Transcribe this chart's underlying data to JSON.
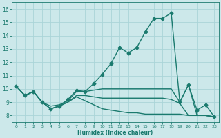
{
  "title": "",
  "xlabel": "Humidex (Indice chaleur)",
  "ylabel": "",
  "background_color": "#cce8ea",
  "grid_color": "#aad4d8",
  "line_color": "#1a7a6e",
  "xlim": [
    -0.5,
    23.5
  ],
  "ylim": [
    7.5,
    16.5
  ],
  "xticks": [
    0,
    1,
    2,
    3,
    4,
    5,
    6,
    7,
    8,
    9,
    10,
    11,
    12,
    13,
    14,
    15,
    16,
    17,
    18,
    19,
    20,
    21,
    22,
    23
  ],
  "yticks": [
    8,
    9,
    10,
    11,
    12,
    13,
    14,
    15,
    16
  ],
  "series": [
    {
      "x": [
        0,
        1,
        2,
        3,
        4,
        5,
        6,
        7,
        8,
        9,
        10,
        11,
        12,
        13,
        14,
        15,
        16,
        17,
        18,
        19,
        20,
        21,
        22,
        23
      ],
      "y": [
        10.2,
        9.5,
        9.8,
        9.0,
        8.5,
        8.7,
        9.2,
        9.9,
        9.8,
        10.4,
        11.1,
        11.9,
        13.1,
        12.7,
        13.1,
        14.3,
        15.3,
        15.3,
        15.7,
        9.0,
        10.3,
        8.4,
        8.8,
        7.9
      ],
      "marker": "D",
      "markersize": 2.5,
      "linewidth": 1.0
    },
    {
      "x": [
        0,
        1,
        2,
        3,
        4,
        5,
        6,
        7,
        8,
        9,
        10,
        11,
        12,
        13,
        14,
        15,
        16,
        17,
        18,
        19,
        20,
        21,
        22,
        23
      ],
      "y": [
        10.2,
        9.5,
        9.8,
        9.0,
        8.7,
        8.8,
        9.1,
        9.8,
        9.8,
        9.9,
        10.0,
        10.0,
        10.0,
        10.0,
        10.0,
        10.0,
        10.0,
        10.0,
        10.0,
        9.0,
        10.3,
        8.0,
        8.0,
        7.9
      ],
      "marker": null,
      "markersize": 0,
      "linewidth": 1.0
    },
    {
      "x": [
        0,
        1,
        2,
        3,
        4,
        5,
        6,
        7,
        8,
        9,
        10,
        11,
        12,
        13,
        14,
        15,
        16,
        17,
        18,
        19,
        20,
        21,
        22,
        23
      ],
      "y": [
        10.2,
        9.5,
        9.8,
        9.0,
        8.5,
        8.7,
        9.0,
        9.5,
        9.5,
        9.4,
        9.3,
        9.3,
        9.3,
        9.3,
        9.3,
        9.3,
        9.3,
        9.3,
        9.2,
        8.9,
        8.0,
        8.0,
        8.0,
        7.9
      ],
      "marker": null,
      "markersize": 0,
      "linewidth": 1.0
    },
    {
      "x": [
        0,
        1,
        2,
        3,
        4,
        5,
        6,
        7,
        8,
        9,
        10,
        11,
        12,
        13,
        14,
        15,
        16,
        17,
        18,
        19,
        20,
        21,
        22,
        23
      ],
      "y": [
        10.2,
        9.5,
        9.8,
        9.0,
        8.5,
        8.7,
        9.0,
        9.4,
        9.1,
        8.8,
        8.5,
        8.4,
        8.3,
        8.2,
        8.2,
        8.1,
        8.1,
        8.1,
        8.1,
        8.1,
        8.0,
        8.0,
        8.0,
        7.9
      ],
      "marker": null,
      "markersize": 0,
      "linewidth": 1.0
    }
  ]
}
